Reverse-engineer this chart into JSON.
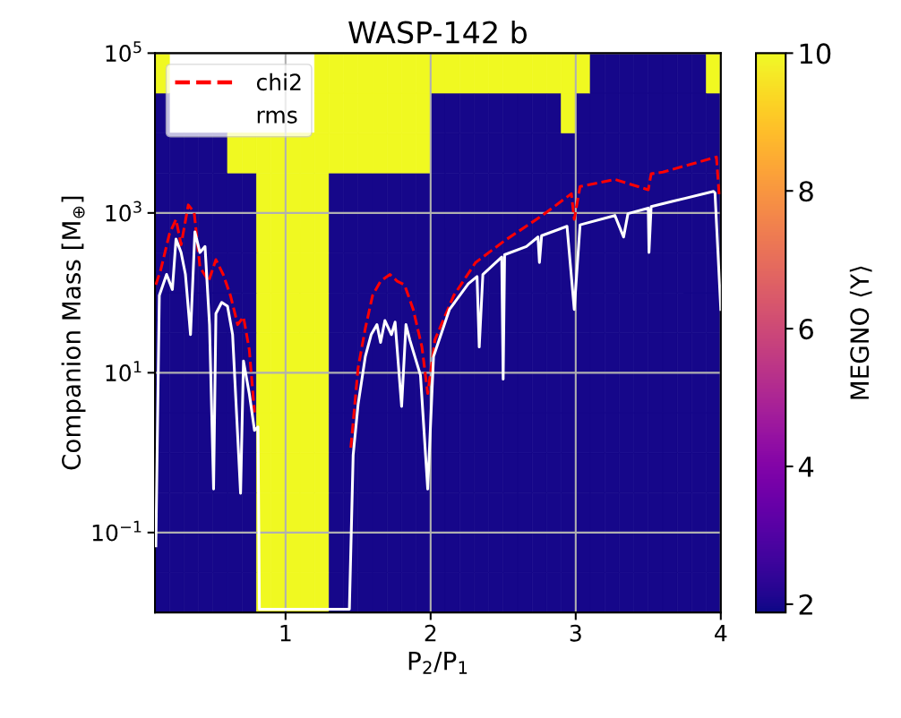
{
  "chart_data": [
    {
      "type": "heatmap",
      "clabel": "MEGNO ⟨Y⟩",
      "tick_labels": false,
      "categories": [
        null,
        null,
        null,
        null,
        null,
        null,
        null,
        null,
        null,
        null,
        null,
        null,
        null,
        null,
        null,
        null,
        null,
        null,
        null,
        null,
        null,
        null,
        null,
        null,
        null,
        null,
        null,
        null,
        null,
        null,
        null,
        null,
        null,
        null,
        null,
        null,
        null,
        null,
        null
      ],
      "y_categories": [
        null,
        null,
        null,
        null,
        null,
        null,
        null,
        null,
        null,
        null,
        null,
        null,
        null,
        null
      ],
      "cells": [
        [
          10,
          null,
          null,
          null,
          null,
          null,
          null,
          null,
          null,
          null,
          null,
          10,
          10,
          10,
          10,
          10,
          10,
          10,
          10,
          10,
          10,
          10,
          10,
          10,
          10,
          10,
          10,
          10,
          10,
          10,
          2,
          2,
          2,
          2,
          2,
          2,
          2,
          2,
          10
        ],
        [
          2,
          null,
          null,
          null,
          null,
          null,
          null,
          null,
          null,
          null,
          null,
          10,
          10,
          10,
          10,
          10,
          10,
          10,
          10,
          2,
          2,
          2,
          2,
          2,
          2,
          2,
          2,
          2,
          10,
          2,
          2,
          2,
          2,
          2,
          2,
          2,
          2,
          2,
          2
        ],
        [
          2,
          2,
          2,
          2,
          2,
          10,
          10,
          10,
          10,
          10,
          10,
          10,
          10,
          10,
          10,
          10,
          10,
          10,
          10,
          2,
          2,
          2,
          2,
          2,
          2,
          2,
          2,
          2,
          2,
          2,
          2,
          2,
          2,
          2,
          2,
          2,
          2,
          2,
          2
        ],
        [
          2,
          2,
          2,
          2,
          2,
          2,
          2,
          10,
          10,
          10,
          10,
          10,
          2,
          2,
          2,
          2,
          2,
          2,
          2,
          2,
          2,
          2,
          2,
          2,
          2,
          2,
          2,
          2,
          2,
          2,
          2,
          2,
          2,
          2,
          2,
          2,
          2,
          2,
          2
        ],
        [
          2,
          2,
          2,
          2,
          2,
          2,
          2,
          10,
          10,
          10,
          10,
          10,
          2,
          2,
          2,
          2,
          2,
          2,
          2,
          2,
          2,
          2,
          2,
          2,
          2,
          2,
          2,
          2,
          2,
          2,
          2,
          2,
          2,
          2,
          2,
          2,
          2,
          2,
          2
        ],
        [
          2,
          2,
          2,
          2,
          2,
          2,
          2,
          10,
          10,
          10,
          10,
          10,
          2,
          2,
          2,
          2,
          2,
          2,
          2,
          2,
          2,
          2,
          2,
          2,
          2,
          2,
          2,
          2,
          2,
          2,
          2,
          2,
          2,
          2,
          2,
          2,
          2,
          2,
          2
        ],
        [
          2,
          2,
          2,
          2,
          2,
          2,
          2,
          10,
          10,
          10,
          10,
          10,
          2,
          2,
          2,
          2,
          2,
          2,
          2,
          2,
          2,
          2,
          2,
          2,
          2,
          2,
          2,
          2,
          2,
          2,
          2,
          2,
          2,
          2,
          2,
          2,
          2,
          2,
          2
        ],
        [
          2,
          2,
          2,
          2,
          2,
          2,
          2,
          10,
          10,
          10,
          10,
          10,
          2,
          2,
          2,
          2,
          2,
          2,
          2,
          2,
          2,
          2,
          2,
          2,
          2,
          2,
          2,
          2,
          2,
          2,
          2,
          2,
          2,
          2,
          2,
          2,
          2,
          2,
          2
        ],
        [
          2,
          2,
          2,
          2,
          2,
          2,
          2,
          10,
          10,
          10,
          10,
          10,
          2,
          2,
          2,
          2,
          2,
          2,
          2,
          2,
          2,
          2,
          2,
          2,
          2,
          2,
          2,
          2,
          2,
          2,
          2,
          2,
          2,
          2,
          2,
          2,
          2,
          2,
          2
        ],
        [
          2,
          2,
          2,
          2,
          2,
          2,
          2,
          10,
          10,
          10,
          10,
          10,
          2,
          2,
          2,
          2,
          2,
          2,
          2,
          2,
          2,
          2,
          2,
          2,
          2,
          2,
          2,
          2,
          2,
          2,
          2,
          2,
          2,
          2,
          2,
          2,
          2,
          2,
          2
        ],
        [
          2,
          2,
          2,
          2,
          2,
          2,
          2,
          10,
          10,
          10,
          10,
          10,
          2,
          2,
          2,
          2,
          2,
          2,
          2,
          2,
          2,
          2,
          2,
          2,
          2,
          2,
          2,
          2,
          2,
          2,
          2,
          2,
          2,
          2,
          2,
          2,
          2,
          2,
          2
        ],
        [
          2,
          2,
          2,
          2,
          2,
          2,
          2,
          10,
          10,
          10,
          10,
          10,
          2,
          2,
          2,
          2,
          2,
          2,
          2,
          2,
          2,
          2,
          2,
          2,
          2,
          2,
          2,
          2,
          2,
          2,
          2,
          2,
          2,
          2,
          2,
          2,
          2,
          2,
          2
        ],
        [
          2,
          2,
          2,
          2,
          2,
          2,
          2,
          10,
          10,
          10,
          10,
          10,
          2,
          2,
          2,
          2,
          2,
          2,
          2,
          2,
          2,
          2,
          2,
          2,
          2,
          2,
          2,
          2,
          2,
          2,
          2,
          2,
          2,
          2,
          2,
          2,
          2,
          2,
          2
        ],
        [
          2,
          2,
          2,
          2,
          2,
          2,
          2,
          10,
          10,
          10,
          10,
          10,
          2,
          2,
          2,
          2,
          2,
          2,
          2,
          2,
          2,
          2,
          2,
          2,
          2,
          2,
          2,
          2,
          2,
          2,
          2,
          2,
          2,
          2,
          2,
          2,
          2,
          2,
          2
        ]
      ],
      "clim": [
        1.88,
        10
      ],
      "cticks": [
        2,
        4,
        6,
        8,
        10
      ]
    },
    {
      "type": "line",
      "title": "WASP-142 b",
      "xlabel": "P$_{2}$/P$_{1}$",
      "ylabel": "Companion Mass [M$_{⊕}$]",
      "xlim": [
        0.1,
        4.0
      ],
      "xticks": [
        1,
        2,
        3,
        4
      ],
      "ylim": [
        0.01,
        100000
      ],
      "log": "y",
      "yticks": [
        {
          "value": 0.1,
          "label": "10$^{−1}$"
        },
        {
          "value": 10,
          "label": "10$^{1}$"
        },
        {
          "value": 1000,
          "label": "10$^{3}$"
        },
        {
          "value": 100000,
          "label": "10$^{5}$"
        }
      ],
      "grid": true,
      "legend": "top left",
      "series": [
        {
          "name": "chi2",
          "line_style": "dashed",
          "color": "#ff0000",
          "x": [
            0.106,
            0.14,
            0.2,
            0.245,
            0.28,
            0.33,
            0.37,
            0.41,
            0.47,
            0.52,
            0.57,
            0.62,
            0.67,
            0.71,
            0.75,
            0.786,
            1.1,
            1.45,
            1.5,
            1.55,
            1.6,
            1.655,
            1.72,
            1.77,
            1.82,
            1.88,
            1.94,
            1.98,
            2.03,
            2.16,
            2.31,
            2.51,
            2.77,
            2.97,
            2.99,
            3.03,
            3.27,
            3.5,
            3.52,
            3.6,
            3.97,
            3.99
          ],
          "values": [
            126,
            195,
            550,
            830,
            400,
            1260,
            1020,
            210,
            140,
            260,
            170,
            93,
            40,
            50,
            19.5,
            3.2,
            null,
            1.15,
            11.5,
            36,
            93,
            140,
            170,
            140,
            126,
            62,
            21,
            5.5,
            26,
            93,
            240,
            450,
            930,
            1740,
            830,
            2140,
            2630,
            1950,
            3090,
            3240,
            5010,
            1550
          ]
        },
        {
          "name": "rms",
          "line_style": "solid",
          "color": "#ffffff",
          "x": [
            0.106,
            0.13,
            0.18,
            0.22,
            0.245,
            0.28,
            0.31,
            0.345,
            0.375,
            0.41,
            0.445,
            0.476,
            0.504,
            0.52,
            0.56,
            0.6,
            0.635,
            0.69,
            0.71,
            0.75,
            0.786,
            0.81,
            0.82,
            1.44,
            1.466,
            1.5,
            1.55,
            1.59,
            1.63,
            1.655,
            1.685,
            1.73,
            1.755,
            1.8,
            1.83,
            1.856,
            1.93,
            1.98,
            2.02,
            2.13,
            2.26,
            2.32,
            2.335,
            2.36,
            2.49,
            2.5,
            2.51,
            2.66,
            2.74,
            2.75,
            2.765,
            2.94,
            2.99,
            3.03,
            3.27,
            3.33,
            3.36,
            3.5,
            3.505,
            3.52,
            3.67,
            3.95,
            3.96,
            4.0
          ],
          "values": [
            0.068,
            93,
            170,
            110,
            470,
            320,
            170,
            30,
            580,
            320,
            380,
            40,
            0.35,
            55,
            76,
            68,
            30,
            0.31,
            14,
            5.5,
            1.9,
            2.1,
            0.011,
            0.011,
            0.93,
            4,
            16,
            30,
            40,
            24,
            45,
            30,
            43,
            3.8,
            40,
            26,
            9.3,
            0.35,
            16,
            62,
            130,
            160,
            21,
            170,
            280,
            8.3,
            300,
            380,
            500,
            240,
            520,
            680,
            62,
            710,
            930,
            500,
            980,
            1150,
            320,
            1200,
            1400,
            1860,
            1780,
            62
          ]
        }
      ]
    }
  ]
}
